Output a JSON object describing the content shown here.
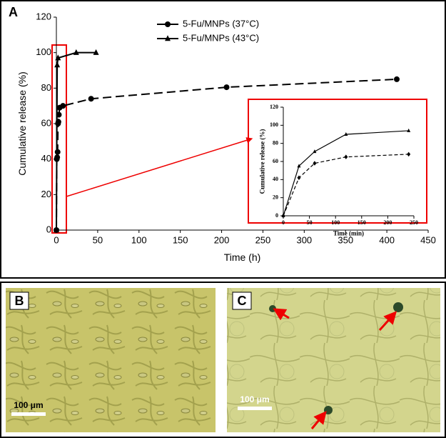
{
  "panel_label": "A",
  "chart_data": [
    {
      "type": "line",
      "x_label": "Time (h)",
      "y_label": "Cumulative release (%)",
      "xlim": [
        0,
        450
      ],
      "xticks": [
        0,
        50,
        100,
        150,
        200,
        250,
        300,
        350,
        400,
        450
      ],
      "ylim": [
        0,
        120
      ],
      "yticks": [
        0,
        20,
        40,
        60,
        80,
        100,
        120
      ],
      "series": [
        {
          "name": "5-Fu/MNPs (37°C)",
          "color": "#000000",
          "line_style": "dashed",
          "marker": "circle",
          "x": [
            0,
            0.5,
            1,
            1.5,
            2,
            2.5,
            3,
            4,
            8,
            42,
            206,
            412
          ],
          "values": [
            0,
            40,
            41,
            44,
            60,
            61,
            65,
            69,
            70,
            74,
            80.5,
            85
          ]
        },
        {
          "name": "5-Fu/MNPs (43°C)",
          "color": "#000000",
          "line_style": "solid",
          "marker": "triangle",
          "x": [
            0,
            1,
            2,
            24,
            48
          ],
          "values": [
            0,
            93,
            97,
            100,
            100
          ]
        }
      ]
    },
    {
      "type": "line",
      "x_label": "Time (min)",
      "y_label": "Cumulative release (%)",
      "xlim": [
        0,
        250
      ],
      "xticks": [
        0,
        50,
        100,
        150,
        200,
        250
      ],
      "ylim": [
        0,
        120
      ],
      "yticks": [
        0,
        20,
        40,
        60,
        80,
        100,
        120
      ],
      "series": [
        {
          "color": "#000000",
          "line_style": "dashed",
          "marker": "diamond",
          "x": [
            0,
            30,
            60,
            120,
            240
          ],
          "values": [
            0,
            42,
            58,
            65,
            68
          ]
        },
        {
          "color": "#000000",
          "line_style": "solid",
          "marker": "triangle",
          "x": [
            0,
            30,
            60,
            120,
            240
          ],
          "values": [
            0,
            55,
            71,
            90,
            94
          ]
        }
      ]
    }
  ],
  "panels": [
    {
      "label": "B",
      "scale_bar": "100 μm"
    },
    {
      "label": "C",
      "scale_bar": "100 μm"
    }
  ]
}
